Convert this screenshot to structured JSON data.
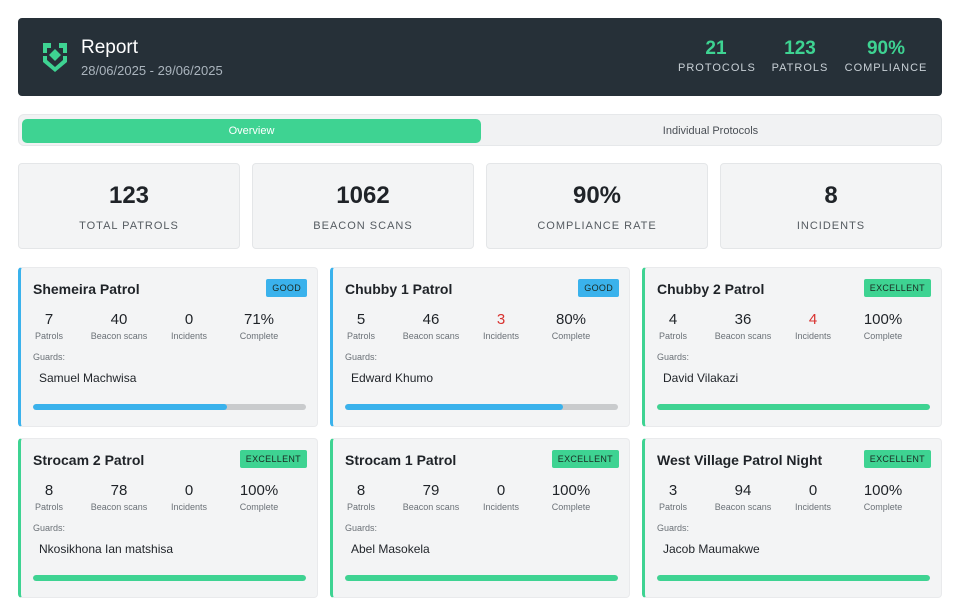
{
  "header": {
    "title": "Report",
    "date_range": "28/06/2025 - 29/06/2025",
    "stats": [
      {
        "value": "21",
        "label": "PROTOCOLS"
      },
      {
        "value": "123",
        "label": "PATROLS"
      },
      {
        "value": "90%",
        "label": "COMPLIANCE"
      }
    ]
  },
  "tabs": {
    "overview": "Overview",
    "individual": "Individual Protocols",
    "active": "overview"
  },
  "summary": [
    {
      "value": "123",
      "label": "TOTAL PATROLS"
    },
    {
      "value": "1062",
      "label": "BEACON SCANS"
    },
    {
      "value": "90%",
      "label": "COMPLIANCE RATE"
    },
    {
      "value": "8",
      "label": "INCIDENTS"
    }
  ],
  "labels": {
    "patrols": "Patrols",
    "beacon_scans": "Beacon scans",
    "incidents": "Incidents",
    "complete": "Complete",
    "guards": "Guards:"
  },
  "colors": {
    "accent_green": "#3ed392",
    "accent_blue": "#3ab2ec",
    "header_bg": "#263038",
    "incident_red": "#d8322f"
  },
  "protocols": [
    {
      "name": "Shemeira Patrol",
      "badge": "GOOD",
      "patrols": "7",
      "beacon_scans": "40",
      "incidents": "0",
      "complete": "71%",
      "progress": 0.71,
      "guard": "Samuel Machwisa"
    },
    {
      "name": "Chubby 1 Patrol",
      "badge": "GOOD",
      "patrols": "5",
      "beacon_scans": "46",
      "incidents": "3",
      "complete": "80%",
      "progress": 0.8,
      "guard": "Edward Khumo"
    },
    {
      "name": "Chubby 2 Patrol",
      "badge": "EXCELLENT",
      "patrols": "4",
      "beacon_scans": "36",
      "incidents": "4",
      "complete": "100%",
      "progress": 1.0,
      "guard": "David Vilakazi"
    },
    {
      "name": "Strocam 2 Patrol",
      "badge": "EXCELLENT",
      "patrols": "8",
      "beacon_scans": "78",
      "incidents": "0",
      "complete": "100%",
      "progress": 1.0,
      "guard": "Nkosikhona Ian matshisa"
    },
    {
      "name": "Strocam 1 Patrol",
      "badge": "EXCELLENT",
      "patrols": "8",
      "beacon_scans": "79",
      "incidents": "0",
      "complete": "100%",
      "progress": 1.0,
      "guard": "Abel Masokela"
    },
    {
      "name": "West Village Patrol Night",
      "badge": "EXCELLENT",
      "patrols": "3",
      "beacon_scans": "94",
      "incidents": "0",
      "complete": "100%",
      "progress": 1.0,
      "guard": "Jacob Maumakwe"
    }
  ]
}
